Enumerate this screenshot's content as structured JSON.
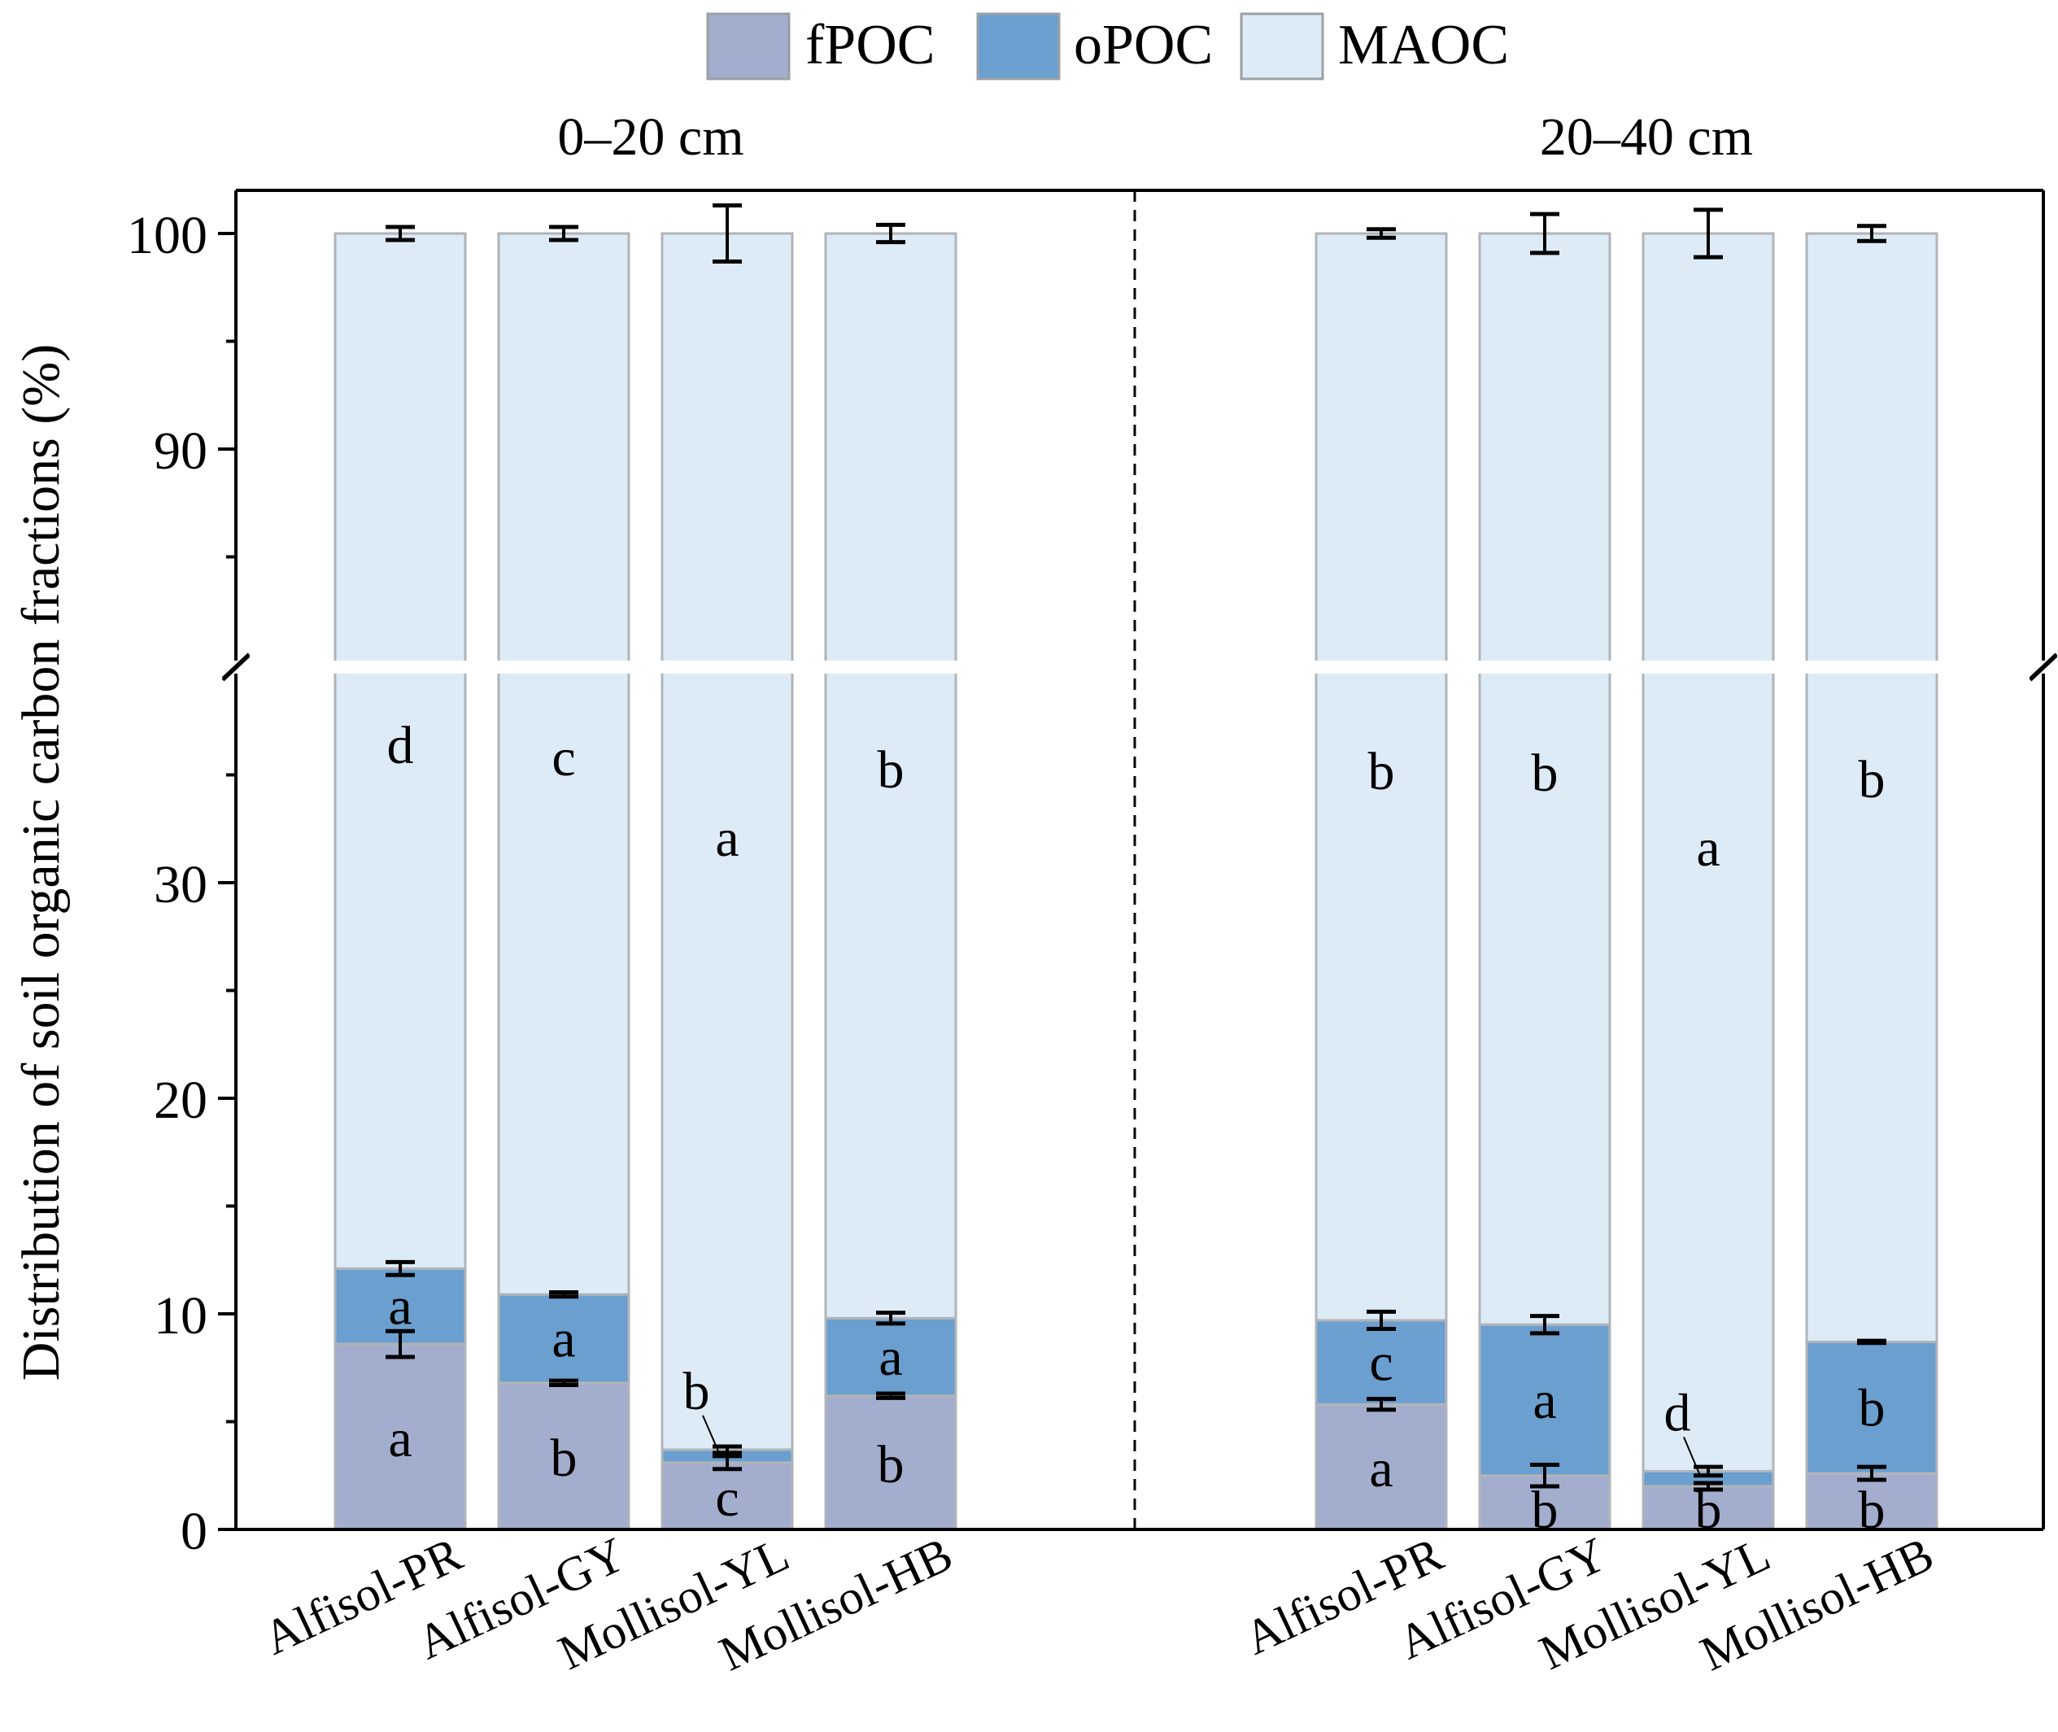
{
  "chart_data": {
    "type": "bar",
    "stacked": true,
    "ylabel": "Distribution of soil organic carbon fractions (%)",
    "y_axis": {
      "lower_range": [
        0,
        40
      ],
      "upper_range": [
        80,
        102
      ],
      "break": true,
      "tick_labels": [
        "0",
        "10",
        "20",
        "30",
        "90",
        "100"
      ]
    },
    "legend": {
      "position": "top-center",
      "items": [
        {
          "name": "fPOC",
          "color": "#a3aece"
        },
        {
          "name": "oPOC",
          "color": "#6a9fd0"
        },
        {
          "name": "MAOC",
          "color": "#ddebf7"
        }
      ]
    },
    "colors": {
      "fPOC": "#a3aece",
      "oPOC": "#6a9fd0",
      "MAOC": "#ddebf7",
      "bar_edge": "#b0b4b8"
    },
    "panels": [
      {
        "title": "0–20 cm",
        "categories": [
          "Alfisol-PR",
          "Alfisol-GY",
          "Mollisol-YL",
          "Mollisol-HB"
        ],
        "series": [
          {
            "name": "fPOC",
            "values": [
              8.6,
              6.8,
              3.1,
              6.2
            ],
            "errors": [
              0.6,
              0.1,
              0.3,
              0.1
            ],
            "letters": [
              "a",
              "b",
              "c",
              "b"
            ]
          },
          {
            "name": "oPOC",
            "values": [
              3.5,
              4.1,
              0.6,
              3.6
            ],
            "errors": [
              0.3,
              0.1,
              0.15,
              0.25
            ],
            "letters": [
              "a",
              "a",
              "b",
              "a"
            ]
          },
          {
            "name": "MAOC",
            "values": [
              87.9,
              89.1,
              96.3,
              90.2
            ],
            "errors": [
              0.3,
              0.3,
              1.3,
              0.4
            ],
            "letters": [
              "d",
              "c",
              "a",
              "b"
            ]
          }
        ]
      },
      {
        "title": "20–40 cm",
        "categories": [
          "Alfisol-PR",
          "Alfisol-GY",
          "Mollisol-YL",
          "Mollisol-HB"
        ],
        "series": [
          {
            "name": "fPOC",
            "values": [
              5.8,
              2.5,
              2.0,
              2.6
            ],
            "errors": [
              0.25,
              0.5,
              0.15,
              0.3
            ],
            "letters": [
              "a",
              "b",
              "b",
              "b"
            ]
          },
          {
            "name": "oPOC",
            "values": [
              3.9,
              7.0,
              0.7,
              6.1
            ],
            "errors": [
              0.4,
              0.4,
              0.2,
              0.05
            ],
            "letters": [
              "c",
              "a",
              "d",
              "b"
            ]
          },
          {
            "name": "MAOC",
            "values": [
              90.3,
              90.5,
              97.3,
              91.3
            ],
            "errors": [
              0.2,
              0.9,
              1.1,
              0.35
            ],
            "letters": [
              "b",
              "b",
              "a",
              "b"
            ]
          }
        ]
      }
    ]
  }
}
